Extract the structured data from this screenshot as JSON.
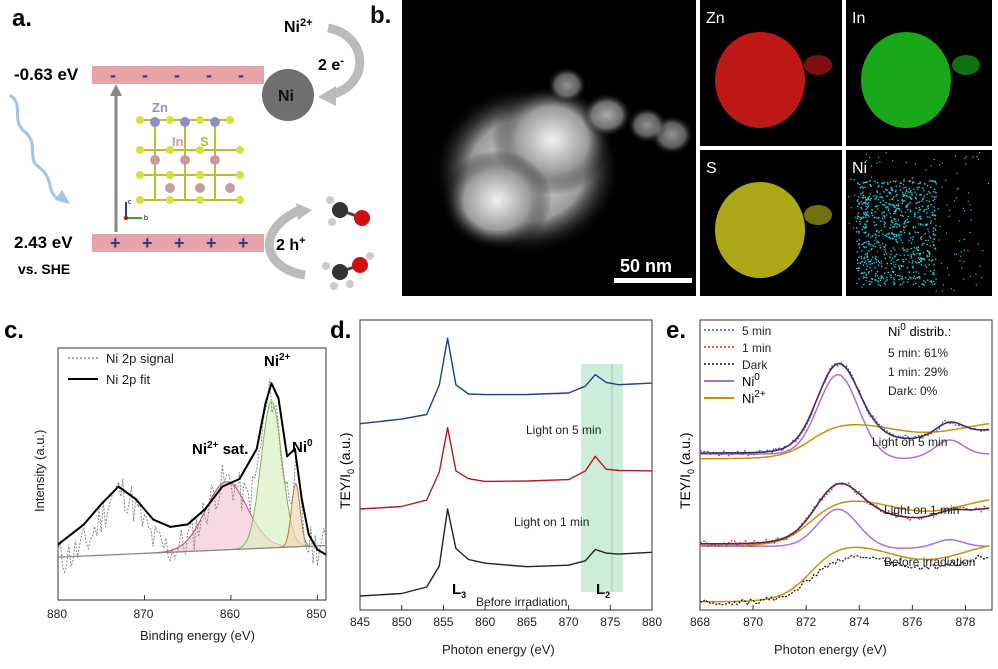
{
  "panel_a": {
    "label": "a.",
    "cb_energy": "-0.63 eV",
    "vb_energy": "2.43 eV",
    "ref": "vs. SHE",
    "ni_ion": "Ni",
    "ni_ion_sup": "2+",
    "electrons": "2 e",
    "electrons_sup": "-",
    "ni_metal": "Ni",
    "holes": "2 h",
    "holes_sup": "+",
    "atom_labels": [
      "Zn",
      "In",
      "S"
    ],
    "axis_labels": [
      "c",
      "b"
    ],
    "colors": {
      "band": "#e7a3a8",
      "zn": "#8f8fc8",
      "in": "#c99aa6",
      "s": "#d8e03a",
      "ni": "#6f6f6f"
    }
  },
  "panel_b": {
    "label": "b.",
    "scale_bar": "50 nm",
    "maps": [
      {
        "name": "Zn",
        "color": "#ff2020"
      },
      {
        "name": "In",
        "color": "#22e022"
      },
      {
        "name": "S",
        "color": "#e6e020"
      },
      {
        "name": "Ni",
        "color": "#20d0e0"
      }
    ]
  },
  "chart_data": [
    {
      "panel": "c.",
      "type": "line",
      "xlabel": "Binding energy (eV)",
      "ylabel": "Intensity (a.u.)",
      "xlim": [
        880,
        849
      ],
      "xticks": [
        880,
        870,
        860,
        850
      ],
      "series": [
        {
          "name": "Ni 2p signal",
          "style": "dotted",
          "color": "#888888"
        },
        {
          "name": "Ni 2p fit",
          "style": "solid",
          "color": "#000000",
          "x": [
            880,
            877,
            875,
            873,
            871,
            869,
            867,
            865,
            863,
            861,
            859,
            857,
            856,
            855.3,
            854.5,
            853.5,
            852.6,
            851.8,
            851,
            850,
            849
          ],
          "y": [
            0.22,
            0.3,
            0.38,
            0.45,
            0.4,
            0.32,
            0.29,
            0.3,
            0.36,
            0.45,
            0.48,
            0.6,
            0.78,
            0.86,
            0.8,
            0.57,
            0.6,
            0.4,
            0.26,
            0.2,
            0.18
          ]
        }
      ],
      "annotations": [
        {
          "text": "Ni",
          "sup": "2+",
          "after": " sat."
        },
        {
          "text": "Ni",
          "sup": "2+",
          "after": ""
        },
        {
          "text": "Ni",
          "sup": "0",
          "after": ""
        }
      ]
    },
    {
      "panel": "d.",
      "type": "line",
      "xlabel": "Photon energy (eV)",
      "ylabel_main": "TEY/I",
      "ylabel_sub": "0",
      "ylabel_after": " (a.u.)",
      "xlim": [
        845,
        880
      ],
      "xticks": [
        845,
        850,
        855,
        860,
        865,
        870,
        875,
        880
      ],
      "x": [
        845,
        850,
        853,
        854.5,
        855.5,
        856.5,
        858,
        860,
        865,
        870,
        872,
        873.2,
        874.5,
        876,
        880
      ],
      "series": [
        {
          "name": "Light on 5 min",
          "color": "#1f3f8f",
          "offset": 2.0,
          "y": [
            0,
            0.05,
            0.12,
            0.45,
            1.0,
            0.45,
            0.36,
            0.34,
            0.34,
            0.36,
            0.45,
            0.58,
            0.48,
            0.46,
            0.48
          ]
        },
        {
          "name": "Light on 1 min",
          "color": "#b01c1c",
          "offset": 1.0,
          "y": [
            0,
            0.05,
            0.12,
            0.45,
            0.95,
            0.45,
            0.36,
            0.34,
            0.34,
            0.36,
            0.45,
            0.62,
            0.48,
            0.45,
            0.46
          ]
        },
        {
          "name": "Before irradiation",
          "color": "#222222",
          "offset": 0.0,
          "y": [
            0,
            0.03,
            0.1,
            0.35,
            1.0,
            0.55,
            0.42,
            0.37,
            0.34,
            0.35,
            0.42,
            0.55,
            0.5,
            0.48,
            0.5
          ]
        }
      ],
      "highlight_range": [
        871.5,
        876.5
      ],
      "edge_labels": [
        {
          "text": "L",
          "sub": "3"
        },
        {
          "text": "L",
          "sub": "2"
        }
      ]
    },
    {
      "panel": "e.",
      "type": "line",
      "xlabel": "Photon energy (eV)",
      "ylabel_main": "TEY/I",
      "ylabel_sub": "0",
      "ylabel_after": " (a.u.)",
      "xlim": [
        868,
        879
      ],
      "xticks": [
        868,
        870,
        872,
        874,
        876,
        878
      ],
      "legend": [
        {
          "name": "5 min",
          "style": "dotted",
          "color": "#3060d0"
        },
        {
          "name": "1 min",
          "style": "dotted",
          "color": "#d03030"
        },
        {
          "name": "Dark",
          "style": "dotted",
          "color": "#111111"
        },
        {
          "name": "Ni",
          "sup": "0",
          "style": "solid",
          "color": "#b070d0"
        },
        {
          "name": "Ni",
          "sup": "2+",
          "style": "solid",
          "color": "#c8920a"
        }
      ],
      "distrib_title": "Ni",
      "distrib_sup": "0",
      "distrib_after": " distrib.:",
      "distrib": [
        "5 min: 61%",
        "1 min: 29%",
        "Dark: 0%"
      ],
      "curve_labels": [
        {
          "text": "Light on 5 min",
          "color": "#1f3f8f"
        },
        {
          "text": "Light on 1 min",
          "color": "#b01c1c"
        },
        {
          "text": "Before irradiation",
          "color": "#333333"
        }
      ]
    }
  ]
}
